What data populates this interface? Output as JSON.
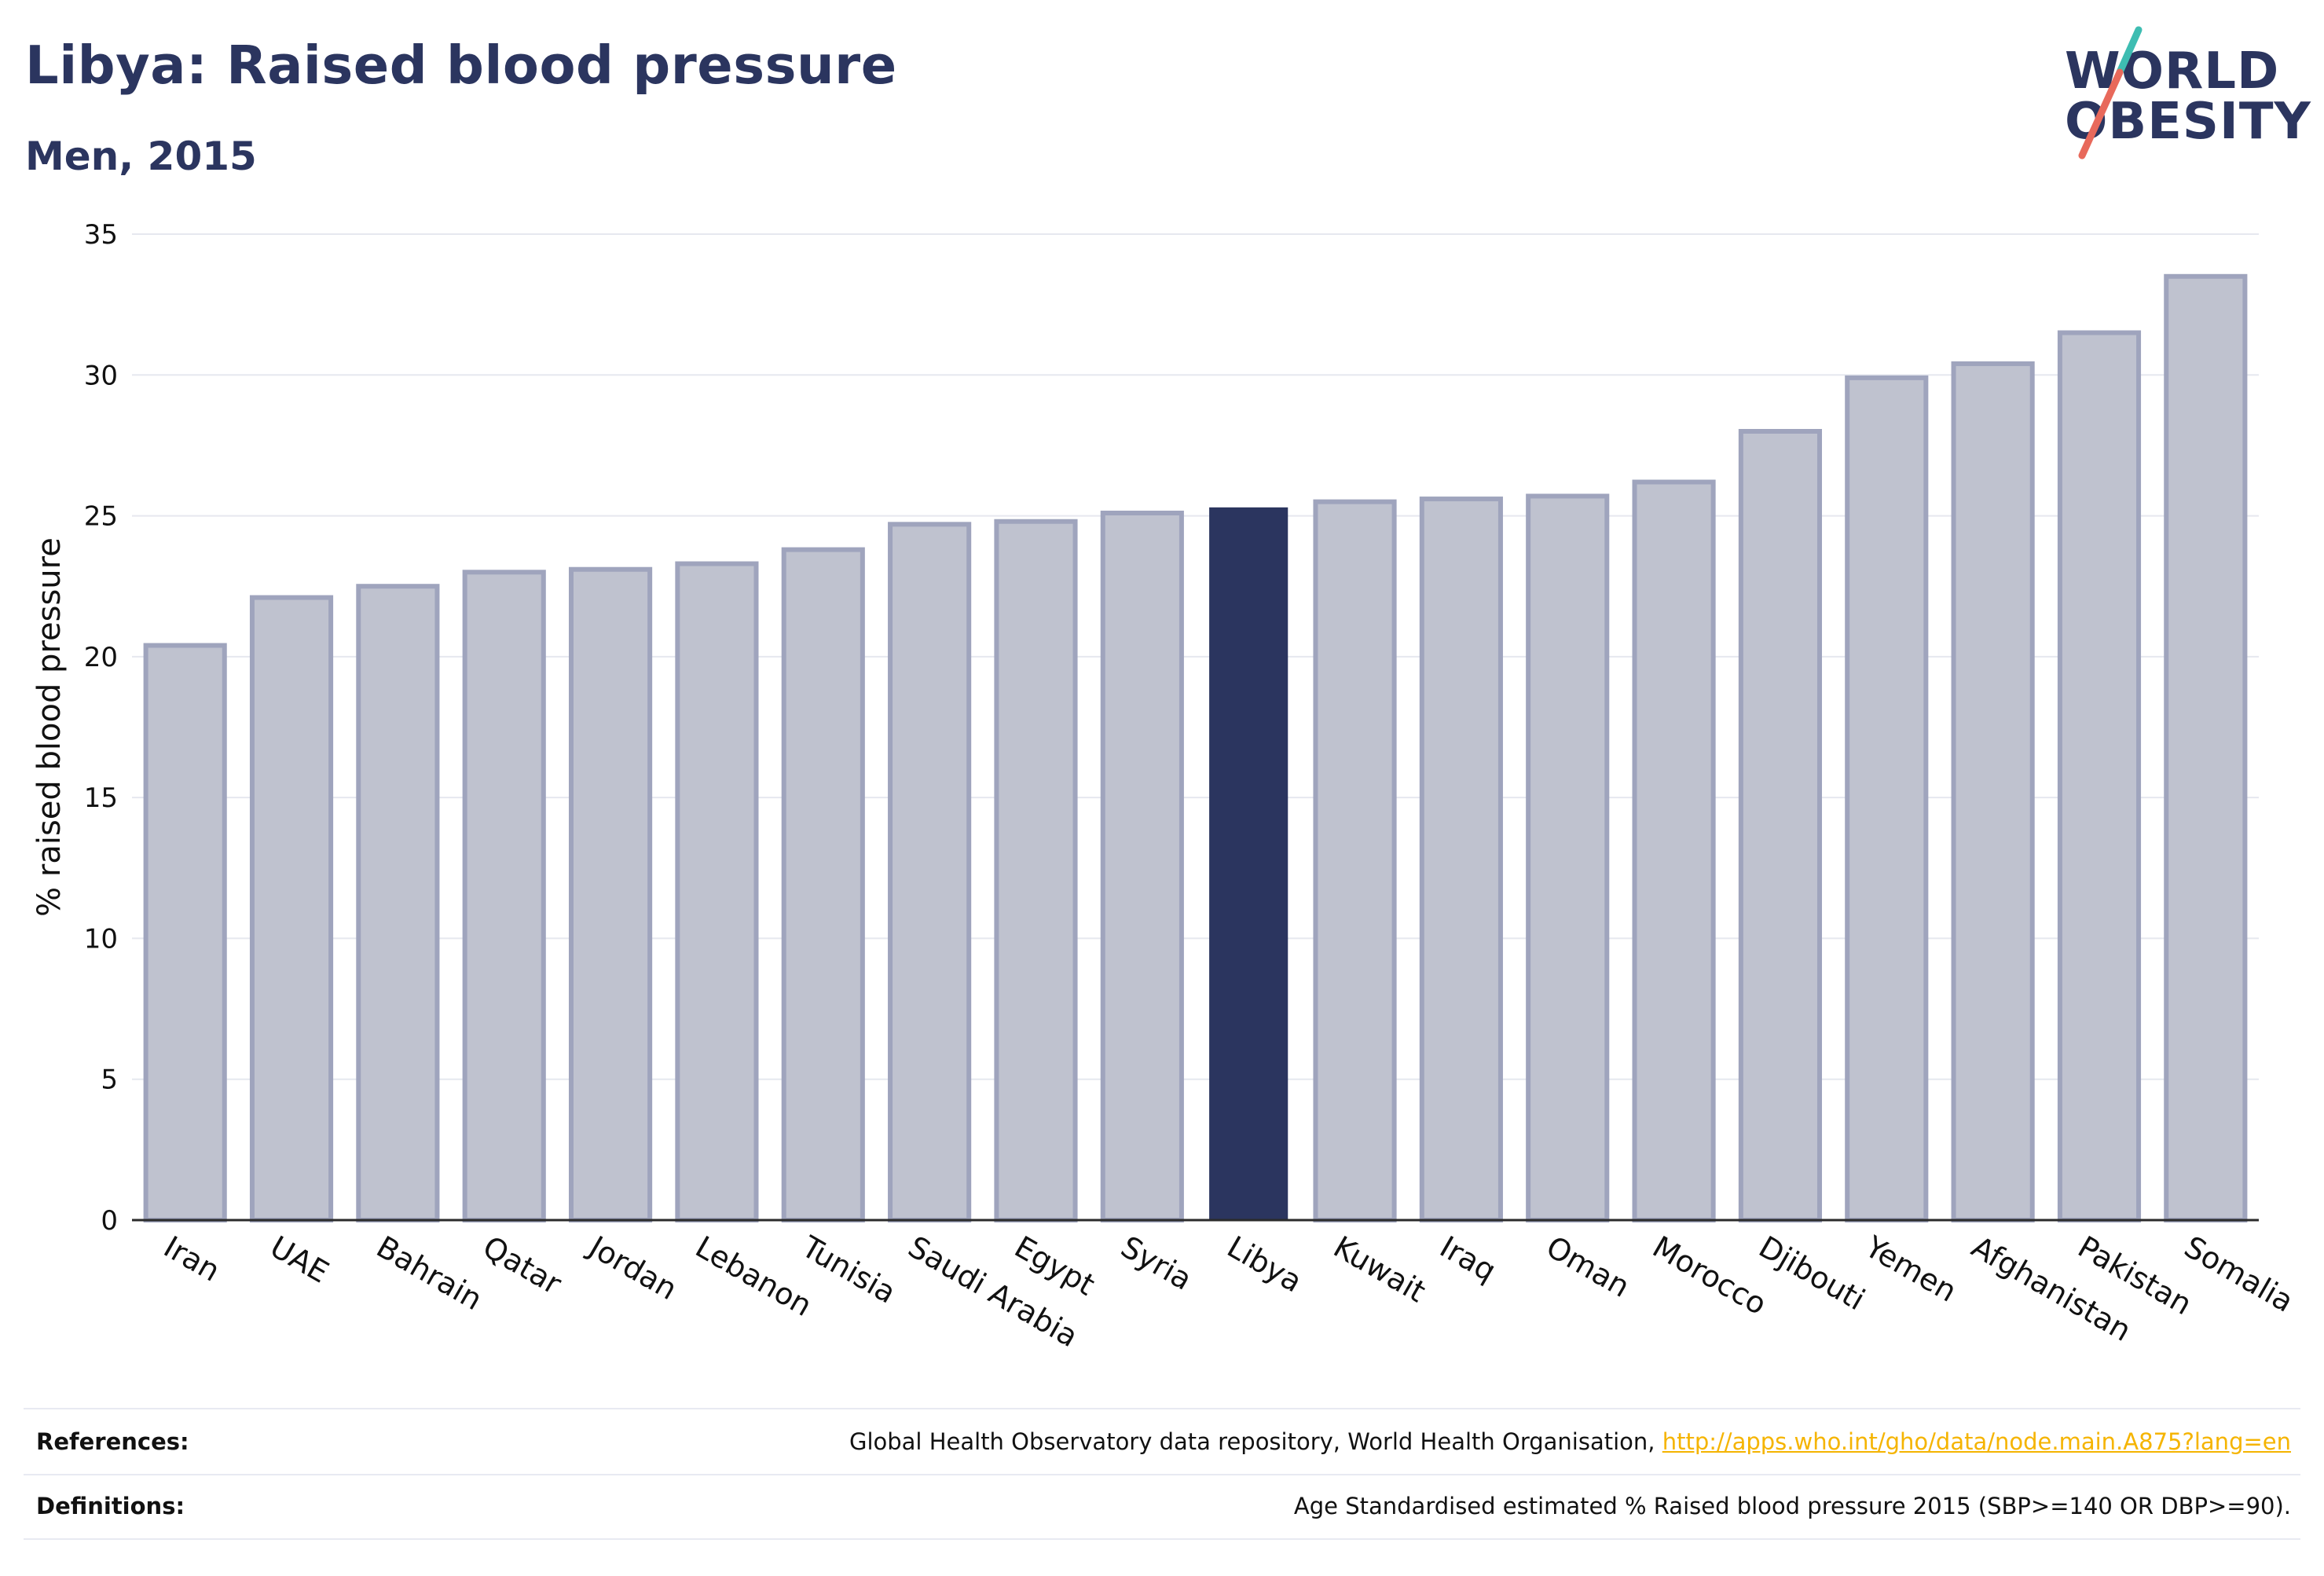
{
  "header": {
    "title": "Libya: Raised blood pressure",
    "subtitle": "Men, 2015"
  },
  "logo": {
    "line1": "WORLD",
    "line2": "OBESITY",
    "accent_colors": [
      "#3ebdb2",
      "#e8695b"
    ]
  },
  "chart_data": {
    "type": "bar",
    "categories": [
      "Iran",
      "UAE",
      "Bahrain",
      "Qatar",
      "Jordan",
      "Lebanon",
      "Tunisia",
      "Saudi Arabia",
      "Egypt",
      "Syria",
      "Libya",
      "Kuwait",
      "Iraq",
      "Oman",
      "Morocco",
      "Djibouti",
      "Yemen",
      "Afghanistan",
      "Pakistan",
      "Somalia"
    ],
    "values": [
      20.4,
      22.1,
      22.5,
      23.0,
      23.1,
      23.3,
      23.8,
      24.7,
      24.8,
      25.1,
      25.3,
      25.5,
      25.6,
      25.7,
      26.2,
      28.0,
      29.9,
      30.4,
      31.5,
      33.5
    ],
    "highlight": "Libya",
    "ylabel": "% raised blood pressure",
    "xlabel": "",
    "ylim": [
      0,
      35
    ],
    "yticks": [
      0,
      5,
      10,
      15,
      20,
      25,
      30,
      35
    ],
    "grid": true,
    "colors": {
      "bar_fill": "#bfc2cf",
      "bar_stroke": "#9fa4bd",
      "highlight": "#2b355f",
      "grid": "#e6e8ef",
      "axis": "#2b2b2b",
      "text": "#111111"
    }
  },
  "footer": {
    "references_label": "References:",
    "references_text": "Global Health Observatory data repository, World Health Organisation, ",
    "references_link": "http://apps.who.int/gho/data/node.main.A875?lang=en",
    "definitions_label": "Definitions:",
    "definitions_text": "Age Standardised estimated % Raised blood pressure 2015 (SBP>=140 OR DBP>=90)."
  }
}
